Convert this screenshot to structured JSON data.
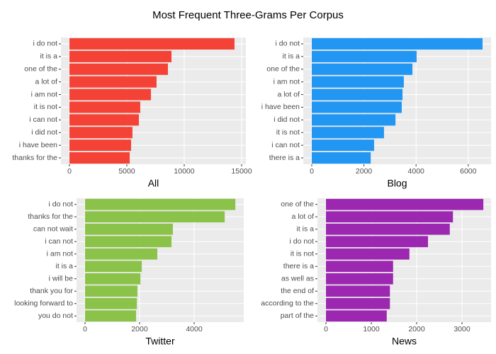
{
  "title": "Most Frequent Three-Grams Per Corpus",
  "chart_data": [
    {
      "type": "bar",
      "orientation": "horizontal",
      "xlabel": "All",
      "color": "#f44336",
      "categories": [
        "i do not",
        "it is a",
        "one of the",
        "a lot of",
        "i am not",
        "it is not",
        "i can not",
        "i did not",
        "i have been",
        "thanks for the"
      ],
      "values": [
        14380,
        8890,
        8580,
        7590,
        7100,
        6170,
        6050,
        5490,
        5370,
        5250
      ],
      "xlim": [
        -740,
        15370
      ],
      "xticks": [
        0,
        5000,
        10000,
        15000
      ],
      "grid": true
    },
    {
      "type": "bar",
      "orientation": "horizontal",
      "xlabel": "Blog",
      "color": "#2196f3",
      "categories": [
        "i do not",
        "it is a",
        "one of the",
        "i am not",
        "a lot of",
        "i have been",
        "i did not",
        "it is not",
        "i can not",
        "there is a"
      ],
      "values": [
        6550,
        4020,
        3860,
        3530,
        3480,
        3450,
        3210,
        2770,
        2390,
        2260
      ],
      "xlim": [
        -326,
        6875
      ],
      "xticks": [
        0,
        2000,
        4000,
        6000
      ],
      "grid": true
    },
    {
      "type": "bar",
      "orientation": "horizontal",
      "xlabel": "Twitter",
      "color": "#8bc34a",
      "categories": [
        "i do not",
        "thanks for the",
        "can not wait",
        "i can not",
        "i am not",
        "it is a",
        "i will be",
        "thank you for",
        "looking forward to",
        "you do not"
      ],
      "values": [
        5510,
        5120,
        3220,
        3170,
        2650,
        2080,
        2030,
        1920,
        1900,
        1870
      ],
      "xlim": [
        -312,
        5818
      ],
      "xticks": [
        0,
        2000,
        4000
      ],
      "grid": true
    },
    {
      "type": "bar",
      "orientation": "horizontal",
      "xlabel": "News",
      "color": "#9c27b0",
      "categories": [
        "one of the",
        "a lot of",
        "it is a",
        "i do not",
        "it is not",
        "there is a",
        "as well as",
        "the end of",
        "according to the",
        "part of the"
      ],
      "values": [
        3470,
        2800,
        2730,
        2250,
        1840,
        1480,
        1480,
        1410,
        1410,
        1340
      ],
      "xlim": [
        -188,
        3640
      ],
      "xticks": [
        0,
        1000,
        2000,
        3000
      ],
      "grid": true
    }
  ]
}
